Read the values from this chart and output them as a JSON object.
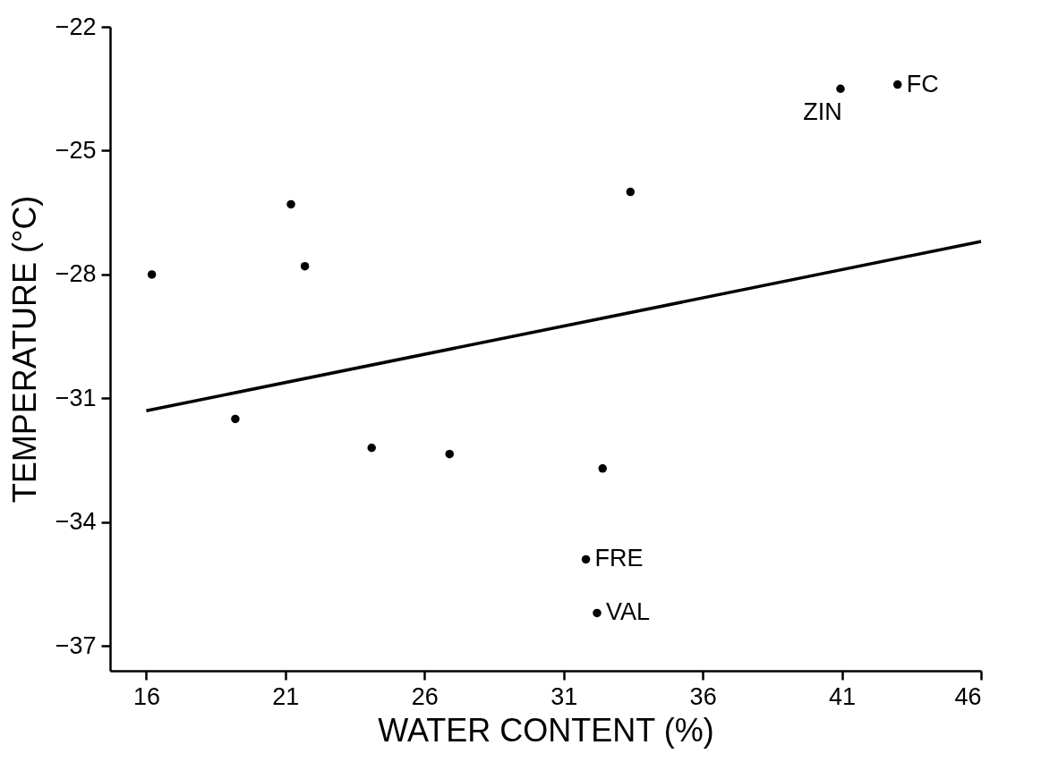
{
  "chart_data": {
    "type": "scatter",
    "xlabel": "WATER CONTENT (%)",
    "ylabel": "TEMPERATURE (°C)",
    "xlim": [
      14.7,
      46
    ],
    "ylim": [
      -37.6,
      -22
    ],
    "xticks": [
      16,
      21,
      26,
      31,
      36,
      41,
      46
    ],
    "yticks": [
      -37,
      -34,
      -31,
      -28,
      -25,
      -22
    ],
    "grid": false,
    "marker": "circle",
    "series": [
      {
        "color": "#000000",
        "x": [
          16.2,
          19.2,
          21.2,
          21.7,
          24.1,
          26.9,
          32.4,
          33.4,
          31.8,
          32.2,
          40.95,
          43.0
        ],
        "values": [
          -28.0,
          -31.5,
          -26.3,
          -27.8,
          -32.2,
          -32.35,
          -32.7,
          -26.0,
          -34.9,
          -36.2,
          -23.5,
          -23.4
        ]
      },
      {
        "type": "line",
        "color": "#000000",
        "x": [
          16,
          46
        ],
        "values": [
          -31.3,
          -27.2
        ],
        "marker": "none"
      }
    ],
    "annotations": [
      {
        "text": "FRE",
        "x": 31.8,
        "y": -34.9
      },
      {
        "text": "VAL",
        "x": 32.2,
        "y": -36.2
      },
      {
        "text": "ZIN",
        "x": 40.95,
        "y": -23.5
      },
      {
        "text": "FC",
        "x": 43.0,
        "y": -23.4
      }
    ]
  }
}
